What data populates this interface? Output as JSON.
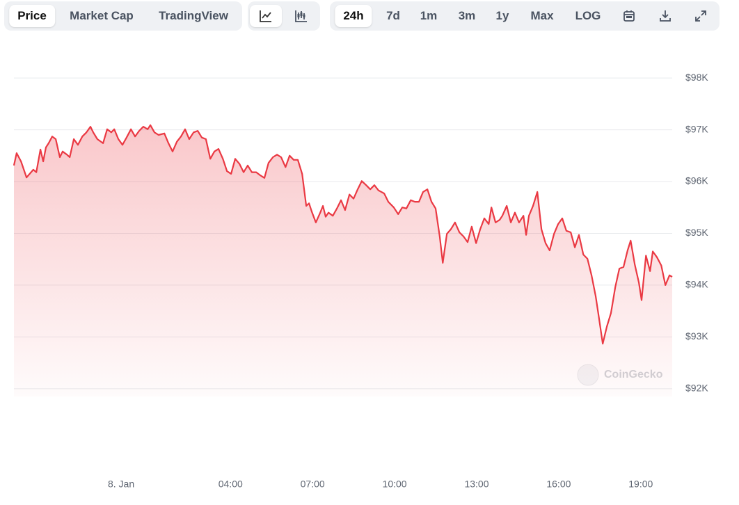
{
  "toolbar": {
    "tabs": [
      "Price",
      "Market Cap",
      "TradingView"
    ],
    "ranges": [
      "24h",
      "7d",
      "1m",
      "3m",
      "1y",
      "Max",
      "LOG"
    ]
  },
  "chart_data": {
    "type": "line",
    "watermark": "CoinGecko",
    "color": "#ea3943",
    "grid": true,
    "x": [
      -3.92,
      -3.82,
      -3.66,
      -3.46,
      -3.21,
      -3.1,
      -2.95,
      -2.85,
      -2.75,
      -2.65,
      -2.52,
      -2.39,
      -2.24,
      -2.14,
      -1.98,
      -1.88,
      -1.73,
      -1.58,
      -1.42,
      -1.27,
      -1.12,
      -1.02,
      -0.87,
      -0.66,
      -0.51,
      -0.36,
      -0.25,
      -0.1,
      0.05,
      0.2,
      0.36,
      0.51,
      0.66,
      0.81,
      0.97,
      1.07,
      1.22,
      1.37,
      1.58,
      1.73,
      1.88,
      2.04,
      2.19,
      2.34,
      2.49,
      2.65,
      2.8,
      2.95,
      3.1,
      3.26,
      3.41,
      3.56,
      3.72,
      3.87,
      4.02,
      4.17,
      4.33,
      4.48,
      4.63,
      4.78,
      4.94,
      5.09,
      5.24,
      5.39,
      5.55,
      5.7,
      5.85,
      6.01,
      6.16,
      6.31,
      6.46,
      6.62,
      6.77,
      6.87,
      6.97,
      7.12,
      7.28,
      7.38,
      7.48,
      7.58,
      7.74,
      7.89,
      8.04,
      8.19,
      8.35,
      8.5,
      8.65,
      8.8,
      8.96,
      9.11,
      9.26,
      9.41,
      9.62,
      9.77,
      9.97,
      10.13,
      10.28,
      10.43,
      10.59,
      10.74,
      10.89,
      11.04,
      11.2,
      11.35,
      11.5,
      11.65,
      11.76,
      11.91,
      12.06,
      12.21,
      12.37,
      12.52,
      12.67,
      12.82,
      12.98,
      13.13,
      13.28,
      13.44,
      13.54,
      13.69,
      13.84,
      13.94,
      14.1,
      14.25,
      14.4,
      14.55,
      14.71,
      14.81,
      14.91,
      15.06,
      15.22,
      15.37,
      15.52,
      15.67,
      15.83,
      15.98,
      16.13,
      16.28,
      16.44,
      16.59,
      16.74,
      16.9,
      17.05,
      17.2,
      17.35,
      17.46,
      17.61,
      17.76,
      17.91,
      18.07,
      18.22,
      18.37,
      18.52,
      18.63,
      18.78,
      18.93,
      19.03,
      19.19,
      19.34,
      19.44,
      19.59,
      19.75,
      19.9,
      20.05,
      20.15
    ],
    "values": [
      96310,
      96550,
      96390,
      96080,
      96230,
      96180,
      96620,
      96390,
      96660,
      96740,
      96870,
      96820,
      96470,
      96580,
      96520,
      96470,
      96820,
      96710,
      96870,
      96950,
      97060,
      96950,
      96820,
      96740,
      97010,
      96950,
      97010,
      96820,
      96710,
      96850,
      97010,
      96870,
      96980,
      97060,
      97010,
      97090,
      96950,
      96900,
      96930,
      96740,
      96580,
      96770,
      96870,
      97010,
      96820,
      96950,
      96980,
      96850,
      96820,
      96440,
      96580,
      96630,
      96440,
      96200,
      96150,
      96440,
      96340,
      96180,
      96310,
      96180,
      96180,
      96120,
      96070,
      96360,
      96470,
      96520,
      96470,
      96280,
      96500,
      96420,
      96420,
      96150,
      95530,
      95580,
      95420,
      95210,
      95400,
      95530,
      95320,
      95400,
      95340,
      95480,
      95640,
      95450,
      95750,
      95670,
      95850,
      96010,
      95930,
      95850,
      95930,
      95830,
      95770,
      95610,
      95500,
      95370,
      95500,
      95480,
      95640,
      95610,
      95610,
      95800,
      95850,
      95610,
      95480,
      94940,
      94430,
      94990,
      95080,
      95210,
      95020,
      94940,
      94830,
      95130,
      94810,
      95080,
      95290,
      95180,
      95500,
      95210,
      95260,
      95340,
      95530,
      95210,
      95400,
      95210,
      95340,
      94970,
      95340,
      95530,
      95800,
      95080,
      94810,
      94670,
      94990,
      95180,
      95290,
      95050,
      95020,
      94730,
      94970,
      94590,
      94510,
      94190,
      93790,
      93410,
      92870,
      93200,
      93460,
      93970,
      94320,
      94350,
      94670,
      94860,
      94400,
      94050,
      93710,
      94570,
      94270,
      94650,
      94540,
      94380,
      94000,
      94190,
      94160
    ],
    "xlim": [
      -3.92,
      20.15
    ],
    "xticks": [
      {
        "value": 0,
        "label": "8. Jan"
      },
      {
        "value": 4,
        "label": "04:00"
      },
      {
        "value": 7,
        "label": "07:00"
      },
      {
        "value": 10,
        "label": "10:00"
      },
      {
        "value": 13,
        "label": "13:00"
      },
      {
        "value": 16,
        "label": "16:00"
      },
      {
        "value": 19,
        "label": "19:00"
      }
    ],
    "ylim": [
      91850,
      98700
    ],
    "yticks": [
      {
        "value": 92000,
        "label": "$92K"
      },
      {
        "value": 93000,
        "label": "$93K"
      },
      {
        "value": 94000,
        "label": "$94K"
      },
      {
        "value": 95000,
        "label": "$95K"
      },
      {
        "value": 96000,
        "label": "$96K"
      },
      {
        "value": 97000,
        "label": "$97K"
      },
      {
        "value": 98000,
        "label": "$98K"
      }
    ]
  }
}
